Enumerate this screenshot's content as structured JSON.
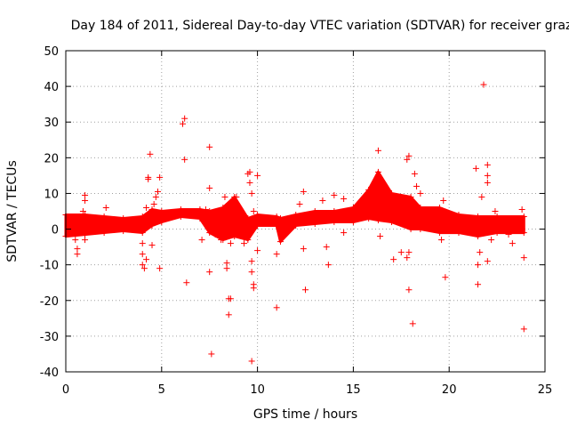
{
  "chart_data": {
    "type": "scatter",
    "title": "Day 184 of 2011, Sidereal Day-to-day VTEC variation (SDTVAR) for receiver graz",
    "xlabel": "GPS time / hours",
    "ylabel": "SDTVAR / TECUs",
    "xlim": [
      0,
      25
    ],
    "ylim": [
      -40,
      50
    ],
    "xticks": [
      0,
      5,
      10,
      15,
      20,
      25
    ],
    "yticks": [
      -40,
      -30,
      -20,
      -10,
      0,
      10,
      20,
      30,
      40,
      50
    ],
    "grid": true,
    "marker": "plus",
    "series_color": "#ff0000",
    "dense_band": [
      {
        "x": 0.0,
        "lo": -2.0,
        "hi": 4.0
      },
      {
        "x": 1.0,
        "lo": -1.5,
        "hi": 4.0
      },
      {
        "x": 2.0,
        "lo": -1.0,
        "hi": 3.5
      },
      {
        "x": 3.0,
        "lo": -0.5,
        "hi": 3.0
      },
      {
        "x": 4.0,
        "lo": -1.0,
        "hi": 3.5
      },
      {
        "x": 4.5,
        "lo": 1.0,
        "hi": 5.5
      },
      {
        "x": 5.0,
        "lo": 2.0,
        "hi": 5.0
      },
      {
        "x": 6.0,
        "lo": 3.5,
        "hi": 5.5
      },
      {
        "x": 7.0,
        "lo": 3.0,
        "hi": 5.5
      },
      {
        "x": 7.5,
        "lo": -1.0,
        "hi": 5.0
      },
      {
        "x": 8.2,
        "lo": -3.0,
        "hi": 6.0
      },
      {
        "x": 8.8,
        "lo": -2.0,
        "hi": 9.0
      },
      {
        "x": 9.5,
        "lo": -3.0,
        "hi": 3.0
      },
      {
        "x": 10.0,
        "lo": 1.0,
        "hi": 4.0
      },
      {
        "x": 11.0,
        "lo": 1.0,
        "hi": 3.5
      },
      {
        "x": 11.2,
        "lo": -3.5,
        "hi": 3.0
      },
      {
        "x": 12.0,
        "lo": 1.0,
        "hi": 4.0
      },
      {
        "x": 13.0,
        "lo": 1.5,
        "hi": 5.0
      },
      {
        "x": 14.0,
        "lo": 2.0,
        "hi": 5.0
      },
      {
        "x": 15.0,
        "lo": 2.0,
        "hi": 6.0
      },
      {
        "x": 15.8,
        "lo": 3.0,
        "hi": 11.0
      },
      {
        "x": 16.3,
        "lo": 2.5,
        "hi": 16.0
      },
      {
        "x": 17.0,
        "lo": 2.0,
        "hi": 10.0
      },
      {
        "x": 18.0,
        "lo": 0.0,
        "hi": 9.0
      },
      {
        "x": 18.5,
        "lo": 0.0,
        "hi": 6.0
      },
      {
        "x": 19.5,
        "lo": -1.0,
        "hi": 6.0
      },
      {
        "x": 20.5,
        "lo": -1.0,
        "hi": 4.0
      },
      {
        "x": 21.5,
        "lo": -2.0,
        "hi": 3.5
      },
      {
        "x": 22.5,
        "lo": -1.0,
        "hi": 3.5
      },
      {
        "x": 23.9,
        "lo": -1.0,
        "hi": 3.5
      }
    ],
    "outliers": [
      {
        "x": 0.1,
        "y": -1.0
      },
      {
        "x": 0.5,
        "y": -3.0
      },
      {
        "x": 0.6,
        "y": -5.5
      },
      {
        "x": 0.6,
        "y": -7.0
      },
      {
        "x": 0.9,
        "y": 5.0
      },
      {
        "x": 1.0,
        "y": 8.0
      },
      {
        "x": 1.0,
        "y": 9.5
      },
      {
        "x": 1.0,
        "y": -3.0
      },
      {
        "x": 2.1,
        "y": 6.0
      },
      {
        "x": 4.0,
        "y": -4.0
      },
      {
        "x": 4.0,
        "y": -7.0
      },
      {
        "x": 4.0,
        "y": -10.0
      },
      {
        "x": 4.1,
        "y": -11.0
      },
      {
        "x": 4.2,
        "y": -8.5
      },
      {
        "x": 4.3,
        "y": 14.5
      },
      {
        "x": 4.3,
        "y": 14.0
      },
      {
        "x": 4.4,
        "y": 21.0
      },
      {
        "x": 4.2,
        "y": 6.0
      },
      {
        "x": 4.5,
        "y": -4.5
      },
      {
        "x": 4.7,
        "y": 9.0
      },
      {
        "x": 4.8,
        "y": 10.5
      },
      {
        "x": 4.9,
        "y": 14.5
      },
      {
        "x": 4.9,
        "y": -11.0
      },
      {
        "x": 4.6,
        "y": 7.0
      },
      {
        "x": 6.1,
        "y": 29.5
      },
      {
        "x": 6.2,
        "y": 31.0
      },
      {
        "x": 6.2,
        "y": 19.5
      },
      {
        "x": 6.3,
        "y": -15.0
      },
      {
        "x": 7.1,
        "y": -3.0
      },
      {
        "x": 7.3,
        "y": 5.5
      },
      {
        "x": 7.5,
        "y": 23.0
      },
      {
        "x": 7.5,
        "y": 11.5
      },
      {
        "x": 7.5,
        "y": -12.0
      },
      {
        "x": 7.6,
        "y": -35.0
      },
      {
        "x": 7.8,
        "y": -1.5
      },
      {
        "x": 8.1,
        "y": -3.0
      },
      {
        "x": 8.3,
        "y": 9.0
      },
      {
        "x": 8.4,
        "y": -9.5
      },
      {
        "x": 8.4,
        "y": -11.0
      },
      {
        "x": 8.5,
        "y": -19.5
      },
      {
        "x": 8.5,
        "y": -24.0
      },
      {
        "x": 8.6,
        "y": -19.5
      },
      {
        "x": 8.6,
        "y": -4.0
      },
      {
        "x": 8.9,
        "y": 9.0
      },
      {
        "x": 9.3,
        "y": -4.0
      },
      {
        "x": 9.4,
        "y": -2.0
      },
      {
        "x": 9.5,
        "y": 15.5
      },
      {
        "x": 9.6,
        "y": 16.0
      },
      {
        "x": 9.6,
        "y": 13.0
      },
      {
        "x": 9.7,
        "y": 10.0
      },
      {
        "x": 9.7,
        "y": -9.0
      },
      {
        "x": 9.7,
        "y": -12.0
      },
      {
        "x": 9.8,
        "y": -15.5
      },
      {
        "x": 9.8,
        "y": -16.5
      },
      {
        "x": 9.7,
        "y": -37.0
      },
      {
        "x": 9.8,
        "y": 5.0
      },
      {
        "x": 10.0,
        "y": 15.0
      },
      {
        "x": 10.0,
        "y": -6.0
      },
      {
        "x": 11.0,
        "y": -7.0
      },
      {
        "x": 11.0,
        "y": -22.0
      },
      {
        "x": 12.2,
        "y": 7.0
      },
      {
        "x": 12.4,
        "y": 10.5
      },
      {
        "x": 12.4,
        "y": -5.5
      },
      {
        "x": 12.5,
        "y": -17.0
      },
      {
        "x": 13.4,
        "y": 8.0
      },
      {
        "x": 13.6,
        "y": -5.0
      },
      {
        "x": 13.7,
        "y": -10.0
      },
      {
        "x": 14.0,
        "y": 9.5
      },
      {
        "x": 14.5,
        "y": 8.5
      },
      {
        "x": 14.5,
        "y": -1.0
      },
      {
        "x": 16.3,
        "y": 22.0
      },
      {
        "x": 16.4,
        "y": -2.0
      },
      {
        "x": 17.1,
        "y": -8.5
      },
      {
        "x": 17.5,
        "y": -6.5
      },
      {
        "x": 17.6,
        "y": 7.0
      },
      {
        "x": 17.8,
        "y": 19.5
      },
      {
        "x": 17.9,
        "y": 20.5
      },
      {
        "x": 17.8,
        "y": -8.0
      },
      {
        "x": 17.9,
        "y": -6.5
      },
      {
        "x": 17.9,
        "y": -17.0
      },
      {
        "x": 18.1,
        "y": -26.5
      },
      {
        "x": 18.2,
        "y": 15.5
      },
      {
        "x": 18.3,
        "y": 12.0
      },
      {
        "x": 18.5,
        "y": 10.0
      },
      {
        "x": 19.6,
        "y": -3.0
      },
      {
        "x": 19.7,
        "y": 8.0
      },
      {
        "x": 19.8,
        "y": -13.5
      },
      {
        "x": 21.4,
        "y": 17.0
      },
      {
        "x": 21.5,
        "y": -10.0
      },
      {
        "x": 21.5,
        "y": -15.5
      },
      {
        "x": 21.6,
        "y": -6.5
      },
      {
        "x": 21.7,
        "y": 9.0
      },
      {
        "x": 21.8,
        "y": 40.5
      },
      {
        "x": 22.0,
        "y": 18.0
      },
      {
        "x": 22.0,
        "y": 15.0
      },
      {
        "x": 22.0,
        "y": 13.0
      },
      {
        "x": 22.0,
        "y": -9.0
      },
      {
        "x": 22.2,
        "y": -3.0
      },
      {
        "x": 22.4,
        "y": 5.0
      },
      {
        "x": 23.1,
        "y": -1.5
      },
      {
        "x": 23.3,
        "y": -4.0
      },
      {
        "x": 23.8,
        "y": 5.5
      },
      {
        "x": 23.9,
        "y": -8.0
      },
      {
        "x": 23.9,
        "y": -28.0
      }
    ]
  }
}
